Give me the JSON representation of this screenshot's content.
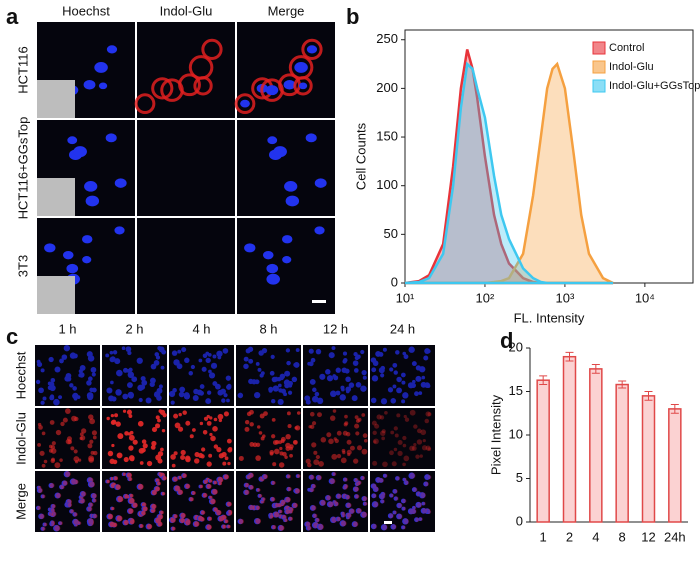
{
  "panels": {
    "a": {
      "panel_label": "a",
      "columns": [
        "Hoechst",
        "Indol-Glu",
        "Merge"
      ],
      "rows": [
        "HCT116",
        "HCT116+GGsTop",
        "3T3"
      ]
    },
    "c": {
      "panel_label": "c",
      "columns": [
        "1 h",
        "2 h",
        "4 h",
        "8 h",
        "12 h",
        "24 h"
      ],
      "rows": [
        "Hoechst",
        "Indol-Glu",
        "Merge"
      ]
    }
  },
  "chart_data": [
    {
      "type": "area",
      "panel_label": "b",
      "xlabel": "FL. Intensity",
      "ylabel": "Cell Counts",
      "log_x": true,
      "legend": "top-right",
      "x": [
        10,
        15,
        20,
        30,
        40,
        50,
        60,
        70,
        80,
        100,
        130,
        160,
        200,
        300,
        400,
        500,
        600,
        700,
        800,
        1000,
        1300,
        1600,
        2000,
        3000,
        4000
      ],
      "series": [
        {
          "name": "Control",
          "color": "#e8333a",
          "values": [
            0,
            2,
            8,
            40,
            120,
            200,
            240,
            220,
            190,
            130,
            70,
            40,
            20,
            5,
            1,
            0,
            0,
            0,
            0,
            0,
            0,
            0,
            0,
            0,
            0
          ]
        },
        {
          "name": "Indol-Glu",
          "color": "#f5a040",
          "values": [
            0,
            0,
            0,
            0,
            0,
            0,
            0,
            0,
            0,
            0,
            1,
            2,
            5,
            30,
            90,
            150,
            200,
            220,
            225,
            200,
            130,
            70,
            30,
            5,
            0
          ]
        },
        {
          "name": "Indol-Glu+GGsTop",
          "color": "#3ec8f0",
          "values": [
            0,
            1,
            5,
            30,
            100,
            180,
            225,
            220,
            200,
            170,
            110,
            70,
            45,
            15,
            5,
            1,
            0,
            0,
            0,
            0,
            0,
            0,
            0,
            0,
            0
          ]
        }
      ],
      "xlim": [
        10,
        40000
      ],
      "xticks": [
        {
          "value": 10,
          "label": "10¹"
        },
        {
          "value": 100,
          "label": "10²"
        },
        {
          "value": 1000,
          "label": "10³"
        },
        {
          "value": 10000,
          "label": "10⁴"
        }
      ],
      "ylim": [
        0,
        260
      ],
      "yticks": [
        0,
        50,
        100,
        150,
        200,
        250
      ]
    },
    {
      "type": "bar",
      "panel_label": "d",
      "ylabel": "Pixel Intensity",
      "categories": [
        "1",
        "2",
        "4",
        "8",
        "12",
        "24h"
      ],
      "values": [
        16.3,
        19.0,
        17.6,
        15.8,
        14.5,
        13.0
      ],
      "errors": [
        0.5,
        0.5,
        0.5,
        0.4,
        0.5,
        0.5
      ],
      "color": "#e04848",
      "ylim": [
        0,
        20
      ],
      "yticks": [
        0,
        5,
        10,
        15,
        20
      ]
    }
  ]
}
